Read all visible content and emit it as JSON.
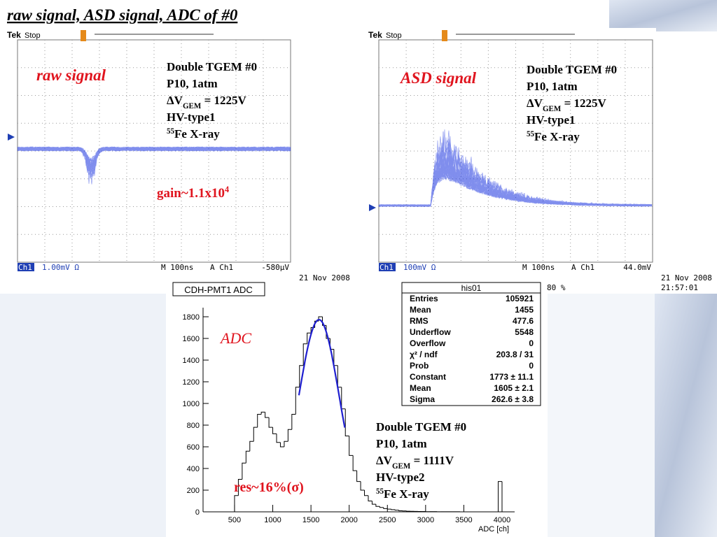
{
  "title": "raw signal, ASD signal, ADC of #0",
  "scopes": [
    {
      "brand": "Tek",
      "status": "Stop",
      "channel": "Ch1",
      "scale": "1.00mV Ω",
      "timebase": "M 100ns",
      "trigger": "A Ch1",
      "level": "-580μV",
      "date": "21 Nov 2008",
      "label": "raw signal",
      "info": [
        "Double TGEM #0",
        "P10, 1atm"
      ],
      "dv": [
        "ΔV",
        "GEM",
        " = 1225V"
      ],
      "hv": "HV-type1",
      "iso": [
        "55",
        "Fe X-ray"
      ],
      "gain": [
        "gain~1.1x10",
        "4"
      ]
    },
    {
      "brand": "Tek",
      "status": "Stop",
      "channel": "Ch1",
      "scale": "100mV Ω",
      "timebase": "M 100ns",
      "trigger": "A Ch1",
      "level": "44.0mV",
      "date": "21 Nov 2008",
      "time": "21:57:01",
      "extra": "80 %",
      "label": "ASD signal",
      "info": [
        "Double TGEM #0",
        "P10, 1atm"
      ],
      "dv": [
        "ΔV",
        "GEM",
        " = 1225V"
      ],
      "hv": "HV-type1",
      "iso": [
        "55",
        "Fe X-ray"
      ]
    }
  ],
  "chart_data": {
    "type": "histogram",
    "title": "CDH-PMT1 ADC",
    "x_label": "ADC [ch]",
    "color": "#000000",
    "fit_color": "#1f1fd0",
    "bins": [
      450,
      500,
      550,
      600,
      650,
      700,
      750,
      800,
      850,
      900,
      950,
      1000,
      1050,
      1100,
      1150,
      1200,
      1250,
      1300,
      1350,
      1400,
      1450,
      1500,
      1550,
      1600,
      1650,
      1700,
      1750,
      1800,
      1850,
      1900,
      1950,
      2000,
      2050,
      2100,
      2150,
      2200,
      2250,
      2300,
      2350,
      2400,
      2450,
      2500,
      2550,
      2600,
      2650,
      2700,
      2750,
      2800,
      2850,
      2900,
      2950,
      3000,
      3050,
      3100,
      3150,
      3200,
      3250,
      3300,
      3350,
      3400,
      3450,
      3500,
      3550,
      3600,
      3650,
      3700,
      3750,
      3800,
      3850,
      3900,
      3950,
      4000,
      4050
    ],
    "values": [
      0,
      150,
      300,
      450,
      560,
      650,
      780,
      900,
      920,
      870,
      780,
      720,
      640,
      600,
      650,
      760,
      900,
      1150,
      1350,
      1550,
      1650,
      1700,
      1760,
      1800,
      1720,
      1600,
      1500,
      1350,
      1150,
      950,
      700,
      520,
      380,
      280,
      200,
      150,
      100,
      70,
      50,
      40,
      30,
      25,
      20,
      15,
      10,
      8,
      6,
      5,
      4,
      3,
      3,
      2,
      2,
      2,
      1,
      1,
      1,
      1,
      1,
      1,
      0,
      0,
      0,
      0,
      0,
      0,
      0,
      0,
      0,
      0,
      280,
      0
    ],
    "xlim": [
      88,
      4165
    ],
    "ylim": [
      0,
      1884
    ],
    "xticks": [
      500,
      1000,
      1500,
      2000,
      2500,
      3000,
      3500,
      4000
    ],
    "yticks": [
      0,
      200,
      400,
      600,
      800,
      1000,
      1200,
      1400,
      1600,
      1800
    ],
    "annotation": "ADC",
    "resolution": "res~16%(σ)",
    "info": [
      "Double TGEM #0",
      "P10, 1atm"
    ],
    "dv": [
      "ΔV",
      "GEM",
      " = 1111V"
    ],
    "hv": "HV-type2",
    "iso": [
      "55",
      "Fe X-ray"
    ],
    "stats": {
      "name": "his01",
      "rows": [
        {
          "label": "Entries",
          "value": "105921"
        },
        {
          "label": "Mean",
          "value": "1455"
        },
        {
          "label": "RMS",
          "value": "477.6"
        },
        {
          "label": "Underflow",
          "value": "5548"
        },
        {
          "label": "Overflow",
          "value": "0"
        },
        {
          "label": "χ² / ndf",
          "value": "203.8 / 31"
        },
        {
          "label": "Prob",
          "value": "0"
        },
        {
          "label": "Constant",
          "value": "1773 ± 11.1"
        },
        {
          "label": "Mean",
          "value": "1605 ± 2.1"
        },
        {
          "label": "Sigma",
          "value": "262.6 ± 3.8"
        }
      ]
    }
  }
}
